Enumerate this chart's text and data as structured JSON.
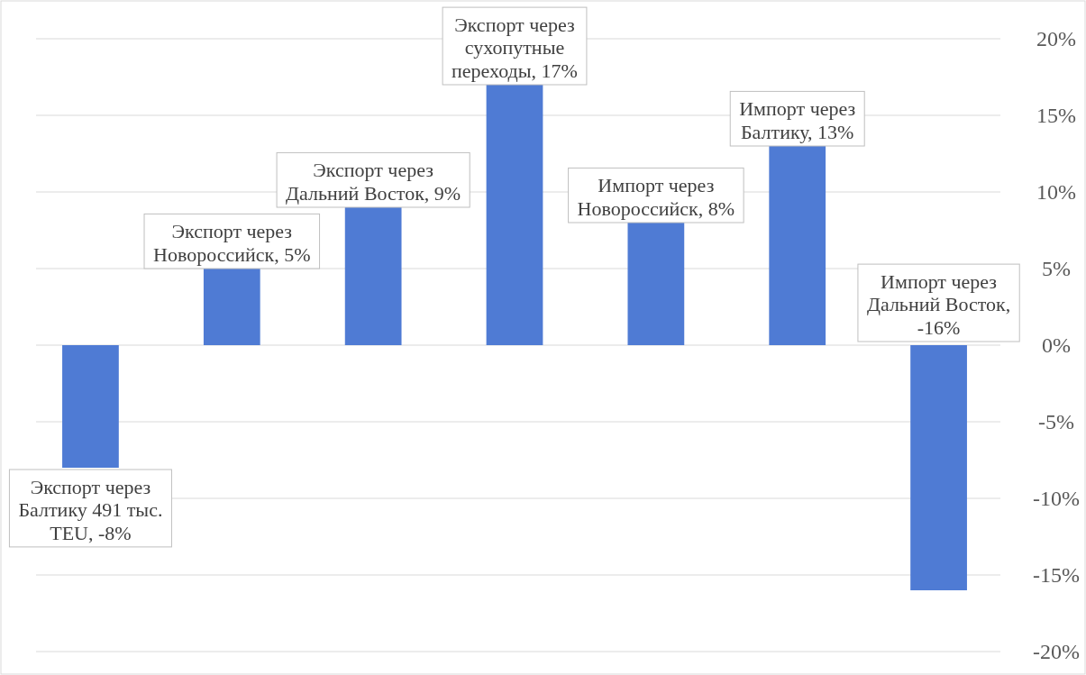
{
  "chart_data": {
    "type": "bar",
    "categories": [
      null,
      null,
      null,
      null,
      null,
      null,
      null
    ],
    "values": [
      -8,
      5,
      9,
      17,
      8,
      13,
      -16
    ],
    "color": "#4f7bd4",
    "value_labels": [
      "Экспорт через Балтику 491 тыс. TEU, -8%",
      "Экспорт через Новороссийск, 5%",
      "Экспорт через Дальний Восток, 9%",
      "Экспорт через сухопутные переходы, 17%",
      "Импорт через Новороссийск, 8%",
      "Импорт через Балтику, 13%",
      "Импорт через Дальний Восток, -16%"
    ],
    "ylim": [
      -20,
      20
    ],
    "yticks": [
      {
        "value": -20,
        "label": "-20%"
      },
      {
        "value": -15,
        "label": "-15%"
      },
      {
        "value": -10,
        "label": "-10%"
      },
      {
        "value": -5,
        "label": "-5%"
      },
      {
        "value": 0,
        "label": "0%"
      },
      {
        "value": 5,
        "label": "5%"
      },
      {
        "value": 10,
        "label": "10%"
      },
      {
        "value": 15,
        "label": "15%"
      },
      {
        "value": 20,
        "label": "20%"
      }
    ],
    "grid": "y"
  }
}
